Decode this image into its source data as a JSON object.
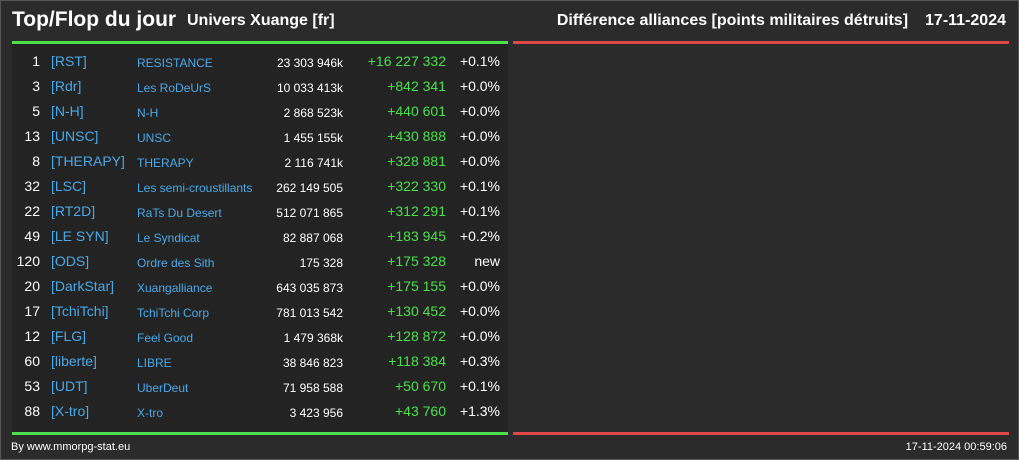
{
  "header": {
    "title": "Top/Flop du jour",
    "universe": "Univers Xuange [fr]",
    "category": "Différence alliances [points militaires détruits]",
    "date": "17-11-2024"
  },
  "colors": {
    "top_bar": "#4be04b",
    "flop_bar": "#e04848",
    "tag_link": "#49a9e8",
    "positive_diff": "#4be04b"
  },
  "top_rows": [
    {
      "rank": "1",
      "tag": "[RST]",
      "name": "RESISTANCE",
      "points": "23 303 946k",
      "diff": "+16 227 332",
      "pct": "+0.1%"
    },
    {
      "rank": "3",
      "tag": "[Rdr]",
      "name": "Les RoDeUrS",
      "points": "10 033 413k",
      "diff": "+842 341",
      "pct": "+0.0%"
    },
    {
      "rank": "5",
      "tag": "[N-H]",
      "name": "N-H",
      "points": "2 868 523k",
      "diff": "+440 601",
      "pct": "+0.0%"
    },
    {
      "rank": "13",
      "tag": "[UNSC]",
      "name": "UNSC",
      "points": "1 455 155k",
      "diff": "+430 888",
      "pct": "+0.0%"
    },
    {
      "rank": "8",
      "tag": "[THERAPY]",
      "name": "THERAPY",
      "points": "2 116 741k",
      "diff": "+328 881",
      "pct": "+0.0%"
    },
    {
      "rank": "32",
      "tag": "[LSC]",
      "name": "Les semi-croustillants",
      "points": "262 149 505",
      "diff": "+322 330",
      "pct": "+0.1%"
    },
    {
      "rank": "22",
      "tag": "[RT2D]",
      "name": "RaTs Du Desert",
      "points": "512 071 865",
      "diff": "+312 291",
      "pct": "+0.1%"
    },
    {
      "rank": "49",
      "tag": "[LE SYN]",
      "name": "Le Syndicat",
      "points": "82 887 068",
      "diff": "+183 945",
      "pct": "+0.2%"
    },
    {
      "rank": "120",
      "tag": "[ODS]",
      "name": "Ordre des Sith",
      "points": "175 328",
      "diff": "+175 328",
      "pct": "new"
    },
    {
      "rank": "20",
      "tag": "[DarkStar]",
      "name": "Xuangalliance",
      "points": "643 035 873",
      "diff": "+175 155",
      "pct": "+0.0%"
    },
    {
      "rank": "17",
      "tag": "[TchiTchi]",
      "name": "TchiTchi Corp",
      "points": "781 013 542",
      "diff": "+130 452",
      "pct": "+0.0%"
    },
    {
      "rank": "12",
      "tag": "[FLG]",
      "name": "Feel Good",
      "points": "1 479 368k",
      "diff": "+128 872",
      "pct": "+0.0%"
    },
    {
      "rank": "60",
      "tag": "[liberte]",
      "name": "LIBRE",
      "points": "38 846 823",
      "diff": "+118 384",
      "pct": "+0.3%"
    },
    {
      "rank": "53",
      "tag": "[UDT]",
      "name": "UberDeut",
      "points": "71 958 588",
      "diff": "+50 670",
      "pct": "+0.1%"
    },
    {
      "rank": "88",
      "tag": "[X-tro]",
      "name": "X-tro",
      "points": "3 423 956",
      "diff": "+43 760",
      "pct": "+1.3%"
    }
  ],
  "footer": {
    "source": "By www.mmorpg-stat.eu",
    "timestamp": "17-11-2024 00:59:06"
  }
}
